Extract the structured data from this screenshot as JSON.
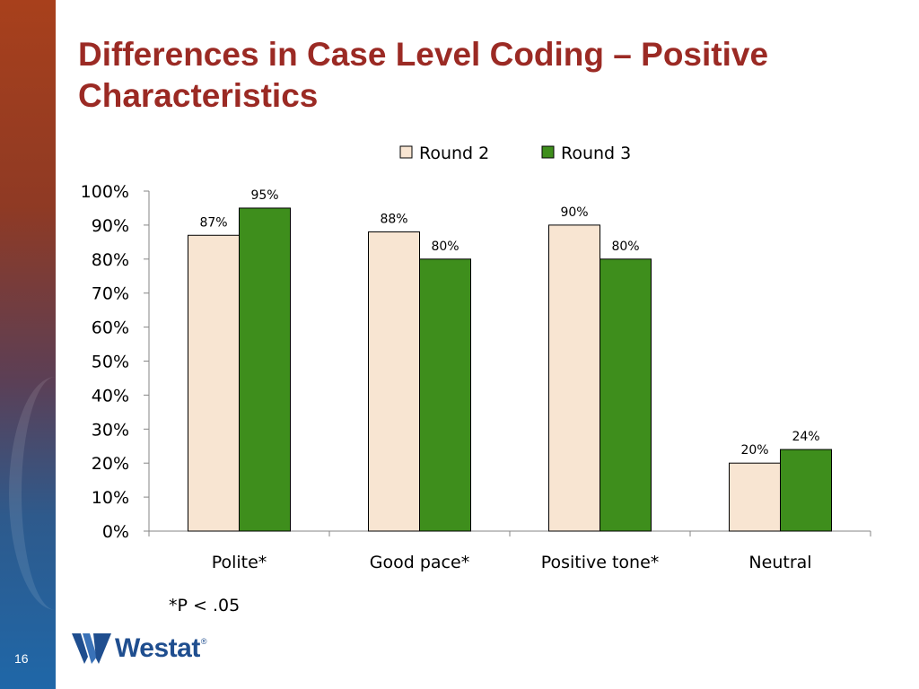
{
  "slide": {
    "title": "Differences in Case Level Coding – Positive Characteristics",
    "footnote": "*P < .05",
    "page_number": "16",
    "logo_text": "Westat",
    "logo_mark": "®"
  },
  "colors": {
    "round2": "#f8e5d2",
    "round3": "#3e8e1c",
    "title": "#9b2a24",
    "logo": "#1f4e8f"
  },
  "chart_data": {
    "type": "bar",
    "title": "",
    "xlabel": "",
    "ylabel": "",
    "categories": [
      "Polite*",
      "Good pace*",
      "Positive tone*",
      "Neutral"
    ],
    "series": [
      {
        "name": "Round 2",
        "values": [
          87,
          88,
          90,
          20
        ],
        "labels": [
          "87%",
          "88%",
          "90%",
          "20%"
        ]
      },
      {
        "name": "Round 3",
        "values": [
          95,
          80,
          80,
          24
        ],
        "labels": [
          "95%",
          "80%",
          "80%",
          "24%"
        ]
      }
    ],
    "ylim": [
      0,
      100
    ],
    "yticks": [
      0,
      10,
      20,
      30,
      40,
      50,
      60,
      70,
      80,
      90,
      100
    ],
    "ytick_labels": [
      "0%",
      "10%",
      "20%",
      "30%",
      "40%",
      "50%",
      "60%",
      "70%",
      "80%",
      "90%",
      "100%"
    ],
    "grid": false,
    "legend_position": "top-center"
  }
}
